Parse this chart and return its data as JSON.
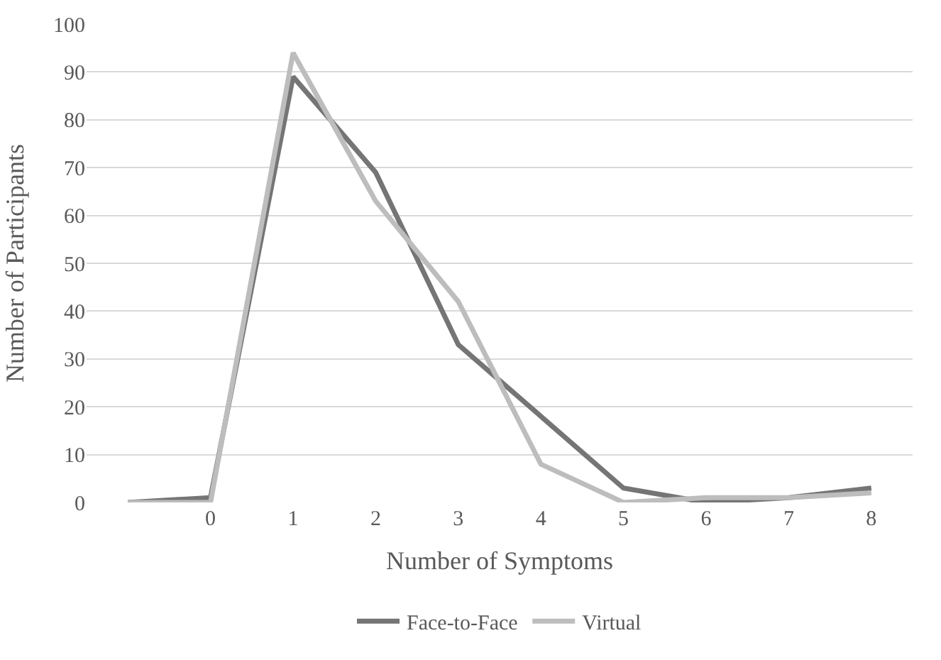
{
  "chart_data": {
    "type": "line",
    "xlabel": "Number of Symptoms",
    "ylabel": "Number of Participants",
    "categories": [
      null,
      "0",
      "1",
      "2",
      "3",
      "4",
      "5",
      "6",
      "7",
      "8"
    ],
    "series": [
      {
        "name": "Face-to-Face",
        "color": "#757575",
        "values": [
          0,
          1,
          89,
          69,
          33,
          18,
          3,
          0,
          1,
          3
        ]
      },
      {
        "name": "Virtual",
        "color": "#bdbdbd",
        "values": [
          0,
          0,
          94,
          63,
          42,
          8,
          0,
          1,
          1,
          2
        ]
      }
    ],
    "ylim": [
      0,
      100
    ],
    "yticks": [
      0,
      10,
      20,
      30,
      40,
      50,
      60,
      70,
      80,
      90,
      100
    ],
    "grid": "y",
    "legend": "bottom",
    "marker": "none",
    "line_style": "solid"
  }
}
